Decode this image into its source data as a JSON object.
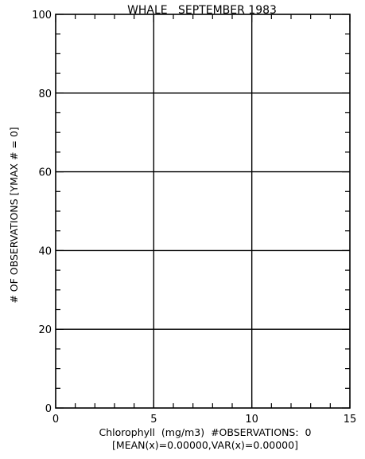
{
  "chart_data": {
    "type": "bar",
    "title": "WHALE   SEPTEMBER 1983",
    "xlabel": "Chlorophyll  (mg/m3)  #OBSERVATIONS:  0",
    "xlabel2": "[MEAN(x)=0.00000,VAR(x)=0.00000]",
    "ylabel": "# OF OBSERVATIONS [YMAX # = 0]",
    "xlim": [
      0,
      15
    ],
    "ylim": [
      0,
      100
    ],
    "xticks": [
      0,
      5,
      10,
      15
    ],
    "xtick_labels": [
      "0",
      "5",
      "10",
      "15"
    ],
    "yticks": [
      0,
      20,
      40,
      60,
      80,
      100
    ],
    "ytick_labels": [
      "0",
      "20",
      "40",
      "60",
      "80",
      "100"
    ],
    "grid": true,
    "series": [],
    "values": [],
    "colors": {
      "axis": "#000000",
      "grid": "#000000",
      "background": "#ffffff"
    }
  }
}
